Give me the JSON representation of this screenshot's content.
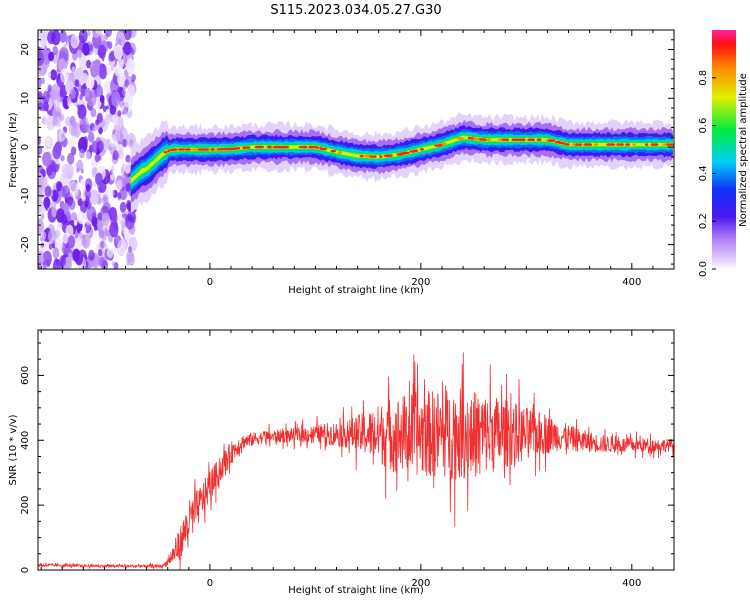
{
  "title": "S115.2023.034.05.27.G30",
  "chart_data": [
    {
      "type": "heatmap",
      "xlabel": "Height of straight line (km)",
      "ylabel": "Frequency (Hz)",
      "xlim": [
        -163,
        440
      ],
      "ylim": [
        -25,
        24
      ],
      "xticks": [
        0,
        200,
        400
      ],
      "yticks": [
        -20,
        -10,
        0,
        10,
        20
      ],
      "noise_region_x": [
        -163,
        -72
      ],
      "ridge": {
        "x": [
          -75,
          -70,
          -65,
          -60,
          -55,
          -50,
          -45,
          -40,
          -35,
          -30,
          -20,
          -10,
          0,
          20,
          40,
          60,
          80,
          100,
          120,
          140,
          160,
          180,
          200,
          220,
          240,
          260,
          280,
          300,
          320,
          340,
          360,
          380,
          400,
          420,
          440
        ],
        "y": [
          -7,
          -6,
          -5,
          -4.5,
          -3.5,
          -2.5,
          -1.5,
          -0.8,
          -0.5,
          -0.5,
          -0.5,
          -0.5,
          -0.5,
          -0.4,
          0,
          0,
          0,
          0,
          -1,
          -1.8,
          -2,
          -1.5,
          -0.5,
          0.5,
          2,
          1.5,
          1.5,
          1.5,
          1.5,
          0.5,
          0.5,
          0.5,
          0.5,
          0.5,
          0.5
        ]
      },
      "colorbar": {
        "label": "Normalized spectral amplitude",
        "ticks": [
          0.0,
          0.2,
          0.4,
          0.6,
          0.8
        ],
        "tick_labels": [
          "0.0",
          "0.2",
          "0.4",
          "0.6",
          "0.8"
        ],
        "range": [
          0,
          1
        ],
        "colors": [
          "#ffffff",
          "#c9a8f7",
          "#7f2cf0",
          "#2a18f5",
          "#00d2f5",
          "#00ee4a",
          "#e8ef00",
          "#ff8000",
          "#ff0010"
        ]
      }
    },
    {
      "type": "line",
      "xlabel": "Height of straight line (km)",
      "ylabel": "SNR (10 * v/v)",
      "xlim": [
        -163,
        440
      ],
      "ylim": [
        0,
        740
      ],
      "xticks": [
        0,
        200,
        400
      ],
      "yticks": [
        0,
        200,
        400,
        600
      ],
      "color": "#f03030",
      "envelope": {
        "x": [
          -163,
          -120,
          -80,
          -45,
          -40,
          -30,
          -20,
          -10,
          0,
          10,
          20,
          30,
          50,
          80,
          100,
          130,
          150,
          170,
          190,
          210,
          230,
          250,
          270,
          290,
          310,
          330,
          350,
          370,
          390,
          410,
          440
        ],
        "y": [
          15,
          13,
          12,
          12,
          25,
          70,
          150,
          200,
          260,
          310,
          360,
          395,
          410,
          415,
          420,
          420,
          420,
          420,
          420,
          420,
          420,
          420,
          420,
          420,
          420,
          415,
          400,
          390,
          385,
          385,
          385
        ],
        "spread": [
          6,
          5,
          5,
          6,
          15,
          60,
          80,
          70,
          60,
          50,
          45,
          30,
          25,
          28,
          35,
          55,
          90,
          140,
          160,
          170,
          180,
          170,
          150,
          120,
          90,
          60,
          45,
          35,
          30,
          28,
          25
        ]
      }
    }
  ]
}
